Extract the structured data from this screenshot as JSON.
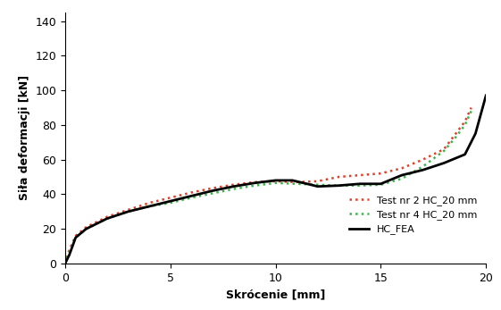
{
  "chart_data": {
    "type": "line",
    "x_label": "Skrócenie [mm]",
    "y_label": "Siła deformacji [kN]",
    "xlim": [
      0,
      20
    ],
    "xticks": [
      0,
      5,
      10,
      15,
      20
    ],
    "ylim": [
      0,
      145
    ],
    "yticks": [
      0,
      20,
      40,
      60,
      80,
      100,
      120,
      140
    ],
    "grid": false,
    "legend": "lower right",
    "series": [
      {
        "name": "Test nr 2 HC_20 mm",
        "color": "#e0402a",
        "line_style": "dotted",
        "x": [
          0,
          0.2,
          0.5,
          1,
          2,
          3,
          4,
          5,
          6,
          7,
          8,
          9,
          10,
          11,
          12,
          13,
          14,
          15,
          16,
          17,
          18,
          18.5,
          19,
          19.3
        ],
        "values": [
          0,
          8,
          16,
          21,
          27,
          31,
          35,
          38,
          41,
          43.5,
          45.5,
          47,
          47.5,
          47,
          47.5,
          50,
          51,
          52,
          55,
          60,
          66,
          74,
          82,
          90
        ]
      },
      {
        "name": "Test nr 4 HC_20 mm",
        "color": "#3cb44b",
        "line_style": "dotted",
        "x": [
          0,
          0.2,
          0.5,
          1,
          2,
          3,
          4,
          5,
          6,
          7,
          8,
          9,
          10,
          11,
          12,
          13,
          14,
          15,
          16,
          17,
          18,
          18.5,
          19,
          19.3
        ],
        "values": [
          0,
          7,
          15,
          20,
          26,
          30,
          33,
          35,
          38,
          40.5,
          43,
          45,
          46.5,
          46,
          45.5,
          45,
          45,
          45.5,
          49,
          56,
          65,
          72,
          80,
          88
        ]
      },
      {
        "name": "HC_FEA",
        "color": "#000000",
        "line_style": "solid",
        "x": [
          0,
          0.2,
          0.5,
          1,
          2,
          3,
          4,
          5,
          6,
          7,
          8,
          9,
          10,
          10.8,
          11.5,
          12,
          13,
          14,
          15,
          16,
          17,
          18,
          19,
          19.5,
          20
        ],
        "values": [
          0,
          5,
          15,
          20,
          26,
          30,
          33,
          36,
          39,
          42,
          44.5,
          46.5,
          48,
          48,
          46,
          44.5,
          45,
          46,
          46,
          51,
          54,
          58,
          63,
          75,
          97
        ]
      }
    ]
  }
}
